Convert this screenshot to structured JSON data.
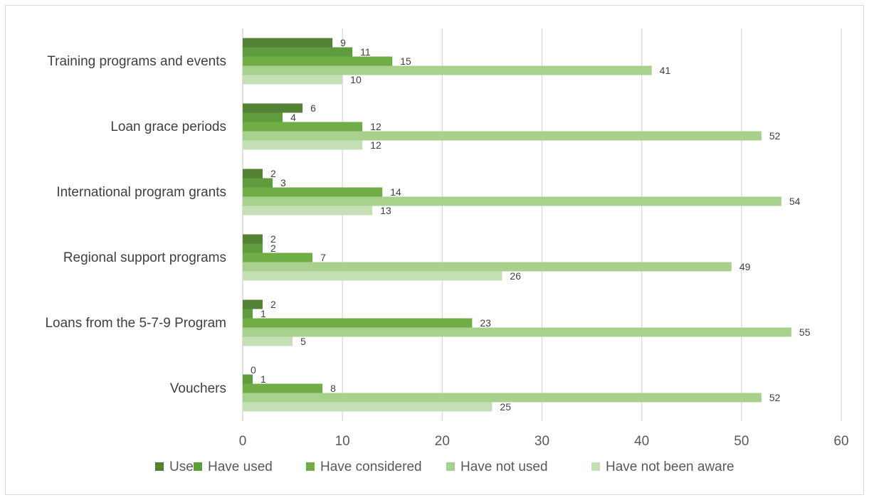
{
  "chart_data": {
    "type": "bar",
    "orientation": "horizontal",
    "categories": [
      "Training programs and events",
      "Loan grace periods",
      "International program grants",
      "Regional support programs",
      "Loans from the 5-7-9 Program",
      "Vouchers"
    ],
    "series": [
      {
        "name": "Use",
        "color": "#548235",
        "values": [
          9,
          6,
          2,
          2,
          2,
          0
        ]
      },
      {
        "name": "Have used",
        "color": "#5e9c3e",
        "values": [
          11,
          4,
          3,
          2,
          1,
          1
        ]
      },
      {
        "name": "Have considered",
        "color": "#70ad47",
        "values": [
          15,
          12,
          14,
          7,
          23,
          8
        ]
      },
      {
        "name": "Have not used",
        "color": "#a9d18e",
        "values": [
          41,
          52,
          54,
          49,
          55,
          52
        ]
      },
      {
        "name": "Have not been aware",
        "color": "#c5e0b4",
        "values": [
          10,
          12,
          13,
          26,
          5,
          25
        ]
      }
    ],
    "xlim": [
      0,
      60
    ],
    "x_ticks": [
      0,
      10,
      20,
      30,
      40,
      50,
      60
    ],
    "grid": true,
    "data_labels": true,
    "legend_position": "bottom",
    "title": "",
    "xlabel": "",
    "ylabel": ""
  }
}
